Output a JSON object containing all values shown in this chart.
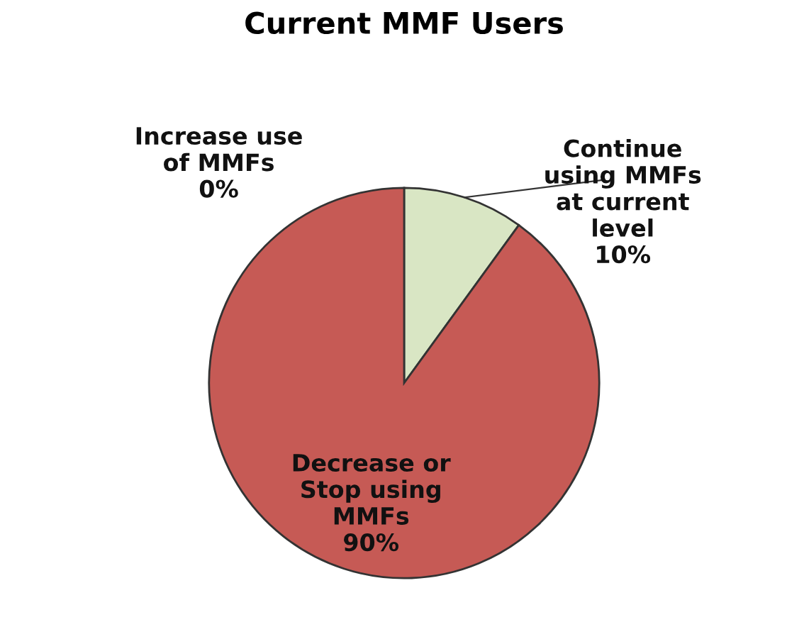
{
  "chart_data": {
    "type": "pie",
    "title": "Current MMF Users",
    "categories": [
      "Increase use\nof MMFs",
      "Continue\nusing MMFs\nat current\nlevel",
      "Decrease or\nStop using\nMMFs"
    ],
    "values": [
      0,
      10,
      90
    ],
    "value_labels": [
      "0%",
      "10%",
      "90%"
    ],
    "colors": [
      "#c9d9a8",
      "#d9e6c4",
      "#c65a55"
    ],
    "legend": false
  }
}
